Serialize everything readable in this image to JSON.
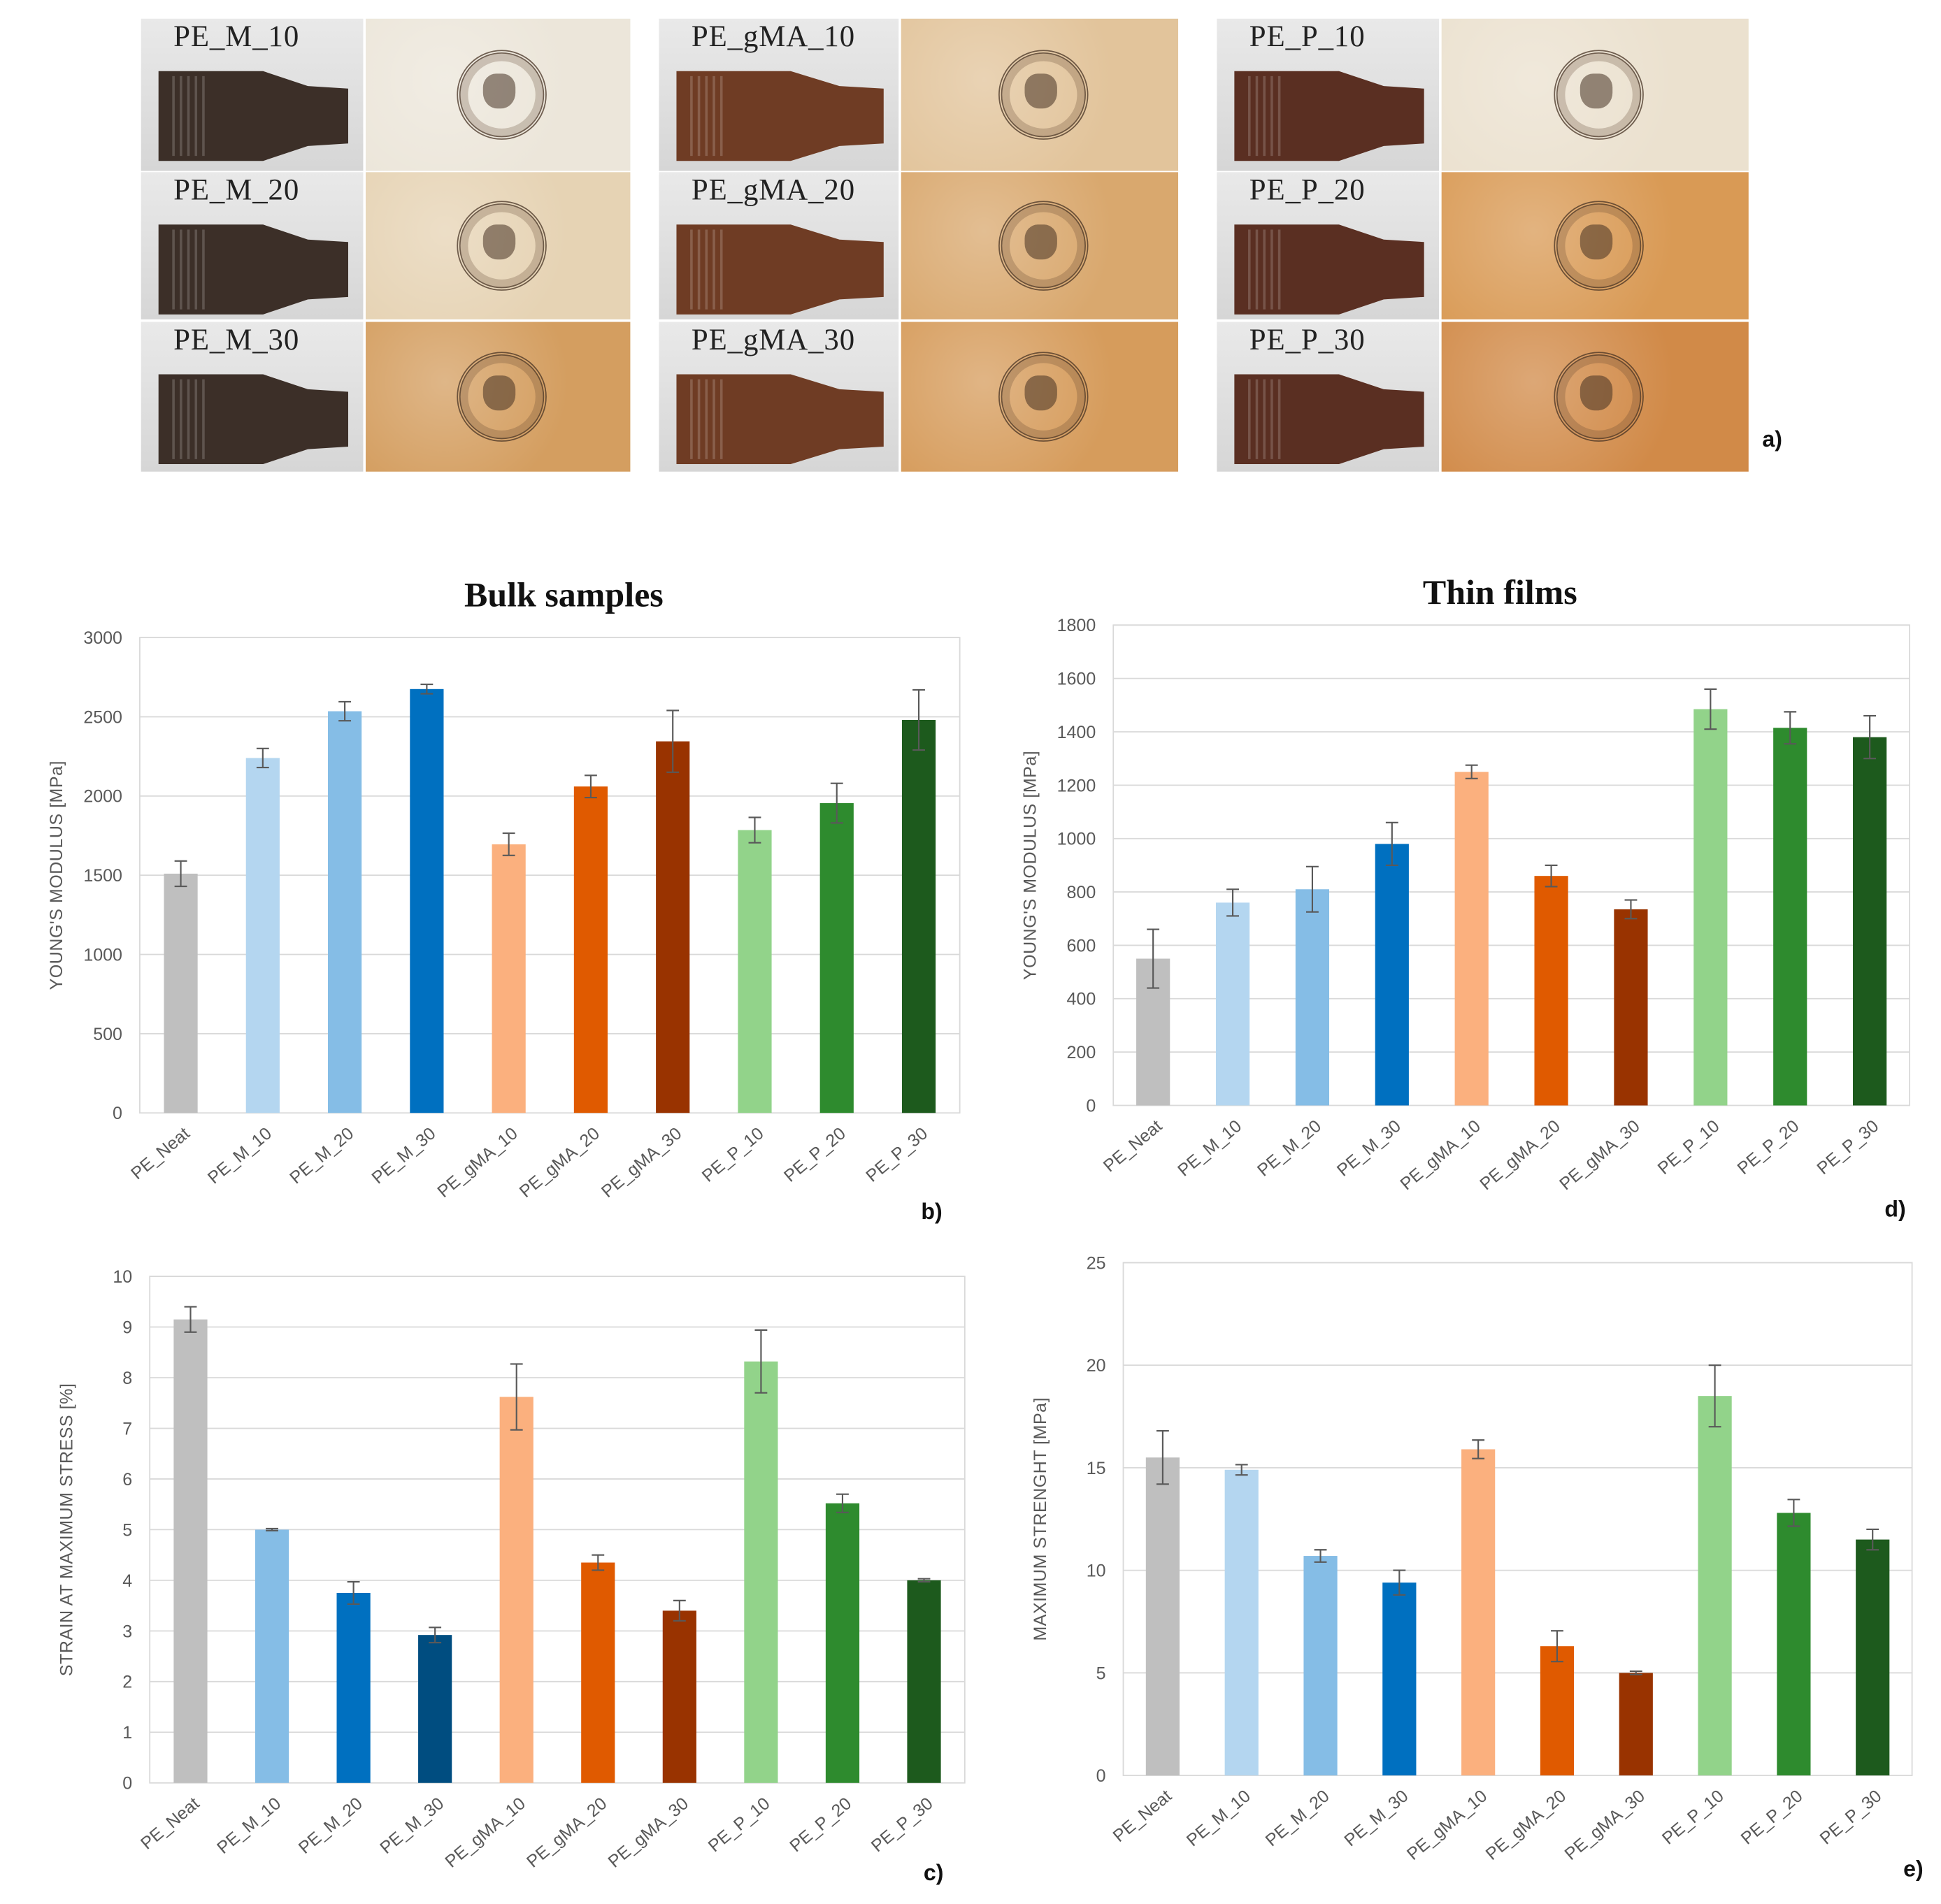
{
  "panel_a": {
    "letter": "a)",
    "groups": [
      {
        "labels": [
          "PE_M_10",
          "PE_M_20",
          "PE_M_30"
        ],
        "film_colors": [
          "#ece6da",
          "#e6d3b4",
          "#d49e60"
        ],
        "dog_color": "#3c2f28"
      },
      {
        "labels": [
          "PE_gMA_10",
          "PE_gMA_20",
          "PE_gMA_30"
        ],
        "film_colors": [
          "#e2c49b",
          "#d9a86e",
          "#d69c5c"
        ],
        "dog_color": "#6f3c24"
      },
      {
        "labels": [
          "PE_P_10",
          "PE_P_20",
          "PE_P_30"
        ],
        "film_colors": [
          "#ebe1cf",
          "#d99a55",
          "#d18a48"
        ],
        "dog_color": "#5a2f22"
      }
    ]
  },
  "titles": {
    "bulk": "Bulk samples",
    "thin": "Thin films"
  },
  "colors": {
    "PE_Neat": "#bfbfbf",
    "PE_M_10": "#b4d6f0",
    "PE_M_20": "#85bde6",
    "PE_M_30": "#0070c0",
    "PE_gMA_10": "#fbb07e",
    "PE_gMA_20": "#e05a00",
    "PE_gMA_30": "#993300",
    "PE_P_10": "#92d38a",
    "PE_P_20": "#2e8b2e",
    "PE_P_30": "#1d5a1d",
    "c_PE_M_10": "#85bde6",
    "c_PE_M_20": "#0070c0",
    "c_PE_M_30": "#004d80"
  },
  "chart_data": [
    {
      "id": "b",
      "letter": "b)",
      "type": "bar",
      "categories": [
        "PE_Neat",
        "PE_M_10",
        "PE_M_20",
        "PE_M_30",
        "PE_gMA_10",
        "PE_gMA_20",
        "PE_gMA_30",
        "PE_P_10",
        "PE_P_20",
        "PE_P_30"
      ],
      "values": [
        1510,
        2240,
        2535,
        2675,
        1695,
        2060,
        2345,
        1785,
        1955,
        2480
      ],
      "errors": [
        80,
        60,
        60,
        30,
        70,
        70,
        195,
        80,
        125,
        190
      ],
      "ylabel": "YOUNG'S MODULUS [MPa]",
      "ylim": [
        0,
        3000
      ],
      "yticks": [
        "0",
        "500",
        "1000",
        "1500",
        "2000",
        "2500",
        "3000"
      ],
      "grid": true
    },
    {
      "id": "d",
      "letter": "d)",
      "type": "bar",
      "categories": [
        "PE_Neat",
        "PE_M_10",
        "PE_M_20",
        "PE_M_30",
        "PE_gMA_10",
        "PE_gMA_20",
        "PE_gMA_30",
        "PE_P_10",
        "PE_P_20",
        "PE_P_30"
      ],
      "values": [
        550,
        760,
        810,
        980,
        1250,
        860,
        735,
        1485,
        1415,
        1380
      ],
      "errors": [
        110,
        50,
        85,
        80,
        25,
        40,
        35,
        75,
        60,
        80
      ],
      "ylabel": "YOUNG'S MODULUS [MPa]",
      "ylim": [
        0,
        1800
      ],
      "yticks": [
        "0",
        "200",
        "400",
        "600",
        "800",
        "1000",
        "1200",
        "1400",
        "1600",
        "1800"
      ],
      "grid": true
    },
    {
      "id": "c",
      "letter": "c)",
      "type": "bar",
      "categories": [
        "PE_Neat",
        "PE_M_10",
        "PE_M_20",
        "PE_M_30",
        "PE_gMA_10",
        "PE_gMA_20",
        "PE_gMA_30",
        "PE_P_10",
        "PE_P_20",
        "PE_P_30"
      ],
      "values": [
        9.15,
        5.0,
        3.75,
        2.92,
        7.62,
        4.35,
        3.4,
        8.32,
        5.52,
        4.0
      ],
      "errors": [
        0.25,
        0.02,
        0.22,
        0.15,
        0.65,
        0.15,
        0.2,
        0.62,
        0.18,
        0.03
      ],
      "ylabel": "STRAIN AT MAXIMUM STRESS [%]",
      "ylim": [
        0,
        10
      ],
      "yticks": [
        "0",
        "1",
        "2",
        "3",
        "4",
        "5",
        "6",
        "7",
        "8",
        "9",
        "10"
      ],
      "grid": true
    },
    {
      "id": "e",
      "letter": "e)",
      "type": "bar",
      "categories": [
        "PE_Neat",
        "PE_M_10",
        "PE_M_20",
        "PE_M_30",
        "PE_gMA_10",
        "PE_gMA_20",
        "PE_gMA_30",
        "PE_P_10",
        "PE_P_20",
        "PE_P_30"
      ],
      "values": [
        15.5,
        14.9,
        10.7,
        9.4,
        15.9,
        6.3,
        5.0,
        18.5,
        12.8,
        11.5
      ],
      "errors": [
        1.3,
        0.25,
        0.3,
        0.6,
        0.45,
        0.75,
        0.08,
        1.5,
        0.65,
        0.5
      ],
      "ylabel": "MAXIMUM STRENGHT [MPa]",
      "ylim": [
        0,
        25
      ],
      "yticks": [
        "0",
        "5",
        "10",
        "15",
        "20",
        "25"
      ],
      "grid": true
    }
  ]
}
